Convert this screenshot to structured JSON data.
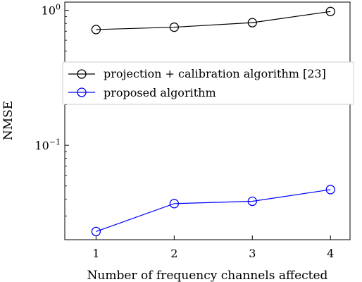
{
  "chart_data": {
    "type": "line",
    "title": "",
    "xlabel": "Number of frequency channels affected",
    "ylabel": "NMSE",
    "x": [
      1,
      2,
      3,
      4
    ],
    "xticks": [
      "1",
      "2",
      "3",
      "4"
    ],
    "xlim": [
      0.6,
      4.25
    ],
    "yscale": "log",
    "ylim": [
      0.02,
      1.15
    ],
    "yticks": [
      {
        "value": 1,
        "base": "10",
        "exp": "0"
      },
      {
        "value": 0.1,
        "base": "10",
        "exp": "−1"
      }
    ],
    "grid": false,
    "legend_position": "upper-middle",
    "series": [
      {
        "name": "projection + calibration algorithm [23]",
        "color": "#000000",
        "marker": "circle",
        "values": [
          0.72,
          0.75,
          0.81,
          0.98
        ]
      },
      {
        "name": "proposed algorithm",
        "color": "#0000ff",
        "marker": "circle",
        "values": [
          0.023,
          0.037,
          0.0385,
          0.047
        ]
      }
    ]
  }
}
